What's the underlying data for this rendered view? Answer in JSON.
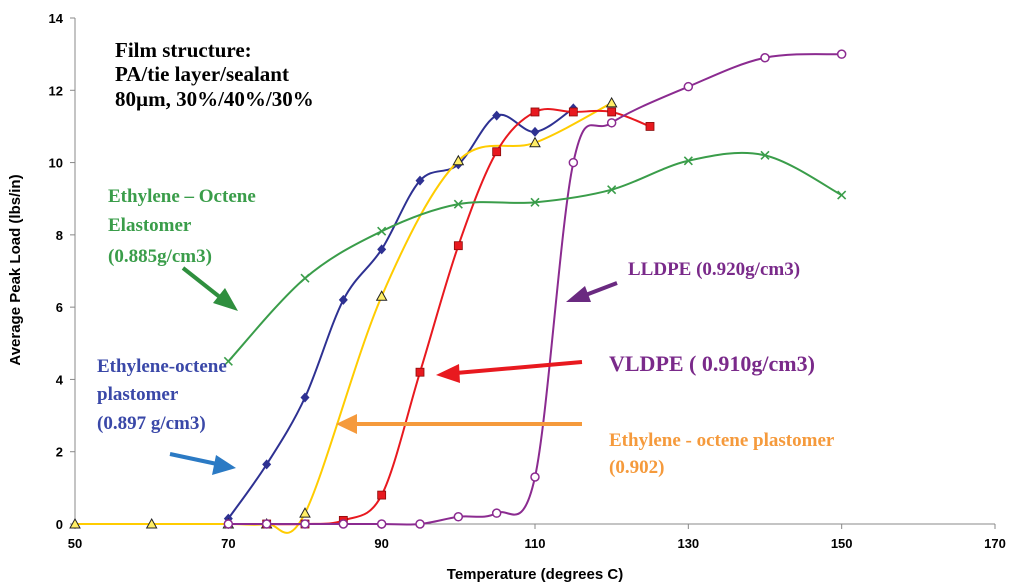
{
  "chart_data": {
    "type": "line",
    "xlabel": "Temperature (degrees C)",
    "ylabel": "Average Peak Load (lbs/in)",
    "xlim": [
      50,
      170
    ],
    "ylim": [
      0,
      14
    ],
    "x_ticks": [
      "50",
      "70",
      "90",
      "110",
      "130",
      "150",
      "170"
    ],
    "y_ticks": [
      "0",
      "2",
      "4",
      "6",
      "8",
      "10",
      "12",
      "14"
    ],
    "grid": false,
    "legend": "none",
    "series": [
      {
        "name": "Ethylene-octene plastomer (0.897 g/cm3)",
        "color": "#2e3192",
        "marker": "diamond",
        "x": [
          70,
          75,
          80,
          85,
          90,
          95,
          100,
          105,
          110,
          115
        ],
        "y": [
          0.15,
          1.65,
          3.5,
          6.2,
          7.6,
          9.5,
          9.95,
          11.3,
          10.85,
          11.5
        ]
      },
      {
        "name": "Ethylene - octene plastomer (0.902)",
        "color": "#ffcc00",
        "marker": "triangle",
        "x": [
          50,
          60,
          70,
          75,
          80,
          90,
          100,
          110,
          120
        ],
        "y": [
          0,
          0,
          0,
          0,
          0.3,
          6.3,
          10.05,
          10.55,
          11.65
        ]
      },
      {
        "name": "VLDPE ( 0.910g/cm3)",
        "color": "#e8191f",
        "marker": "square",
        "x": [
          75,
          80,
          85,
          90,
          95,
          100,
          105,
          110,
          115,
          120,
          125
        ],
        "y": [
          0,
          0,
          0.1,
          0.8,
          4.2,
          7.7,
          10.3,
          11.4,
          11.4,
          11.4,
          11.0
        ]
      },
      {
        "name": "LLDPE (0.920g/cm3)",
        "color": "#8b2b90",
        "marker": "circle",
        "x": [
          70,
          75,
          80,
          85,
          90,
          95,
          100,
          105,
          110,
          115,
          120,
          130,
          140,
          150
        ],
        "y": [
          0,
          0,
          0,
          0,
          0,
          0,
          0.2,
          0.3,
          1.3,
          10.0,
          11.1,
          12.1,
          12.9,
          13.0
        ]
      },
      {
        "name": "Ethylene – Octene Elastomer (0.885g/cm3)",
        "color": "#3a9d4a",
        "marker": "x",
        "x": [
          70,
          80,
          90,
          100,
          110,
          120,
          130,
          140,
          150
        ],
        "y": [
          4.5,
          6.8,
          8.1,
          8.85,
          8.9,
          9.25,
          10.05,
          10.2,
          9.1
        ]
      }
    ],
    "annotations": {
      "film_structure": [
        "Film structure:",
        "PA/tie layer/sealant",
        "80µm, 30%/40%/30%"
      ],
      "elastomer": [
        "Ethylene – Octene",
        "Elastomer",
        "(0.885g/cm3)"
      ],
      "plastomer_897": [
        "Ethylene-octene",
        "plastomer",
        "(0.897 g/cm3)"
      ],
      "lldpe": "LLDPE (0.920g/cm3)",
      "vldpe": "VLDPE ( 0.910g/cm3)",
      "plastomer_902": [
        "Ethylene - octene plastomer",
        "(0.902)"
      ]
    },
    "annotation_colors": {
      "black": "#000000",
      "green": "#3a9d4a",
      "blue": "#3a48a8",
      "purple": "#7a2a8a",
      "red": "#e8191f",
      "orange": "#f59a3c",
      "arrow_green": "#2f8f3e",
      "arrow_blue": "#2b7ac4",
      "arrow_purple": "#6a2a80",
      "arrow_red": "#e8191f",
      "arrow_orange": "#f59a3c"
    }
  }
}
